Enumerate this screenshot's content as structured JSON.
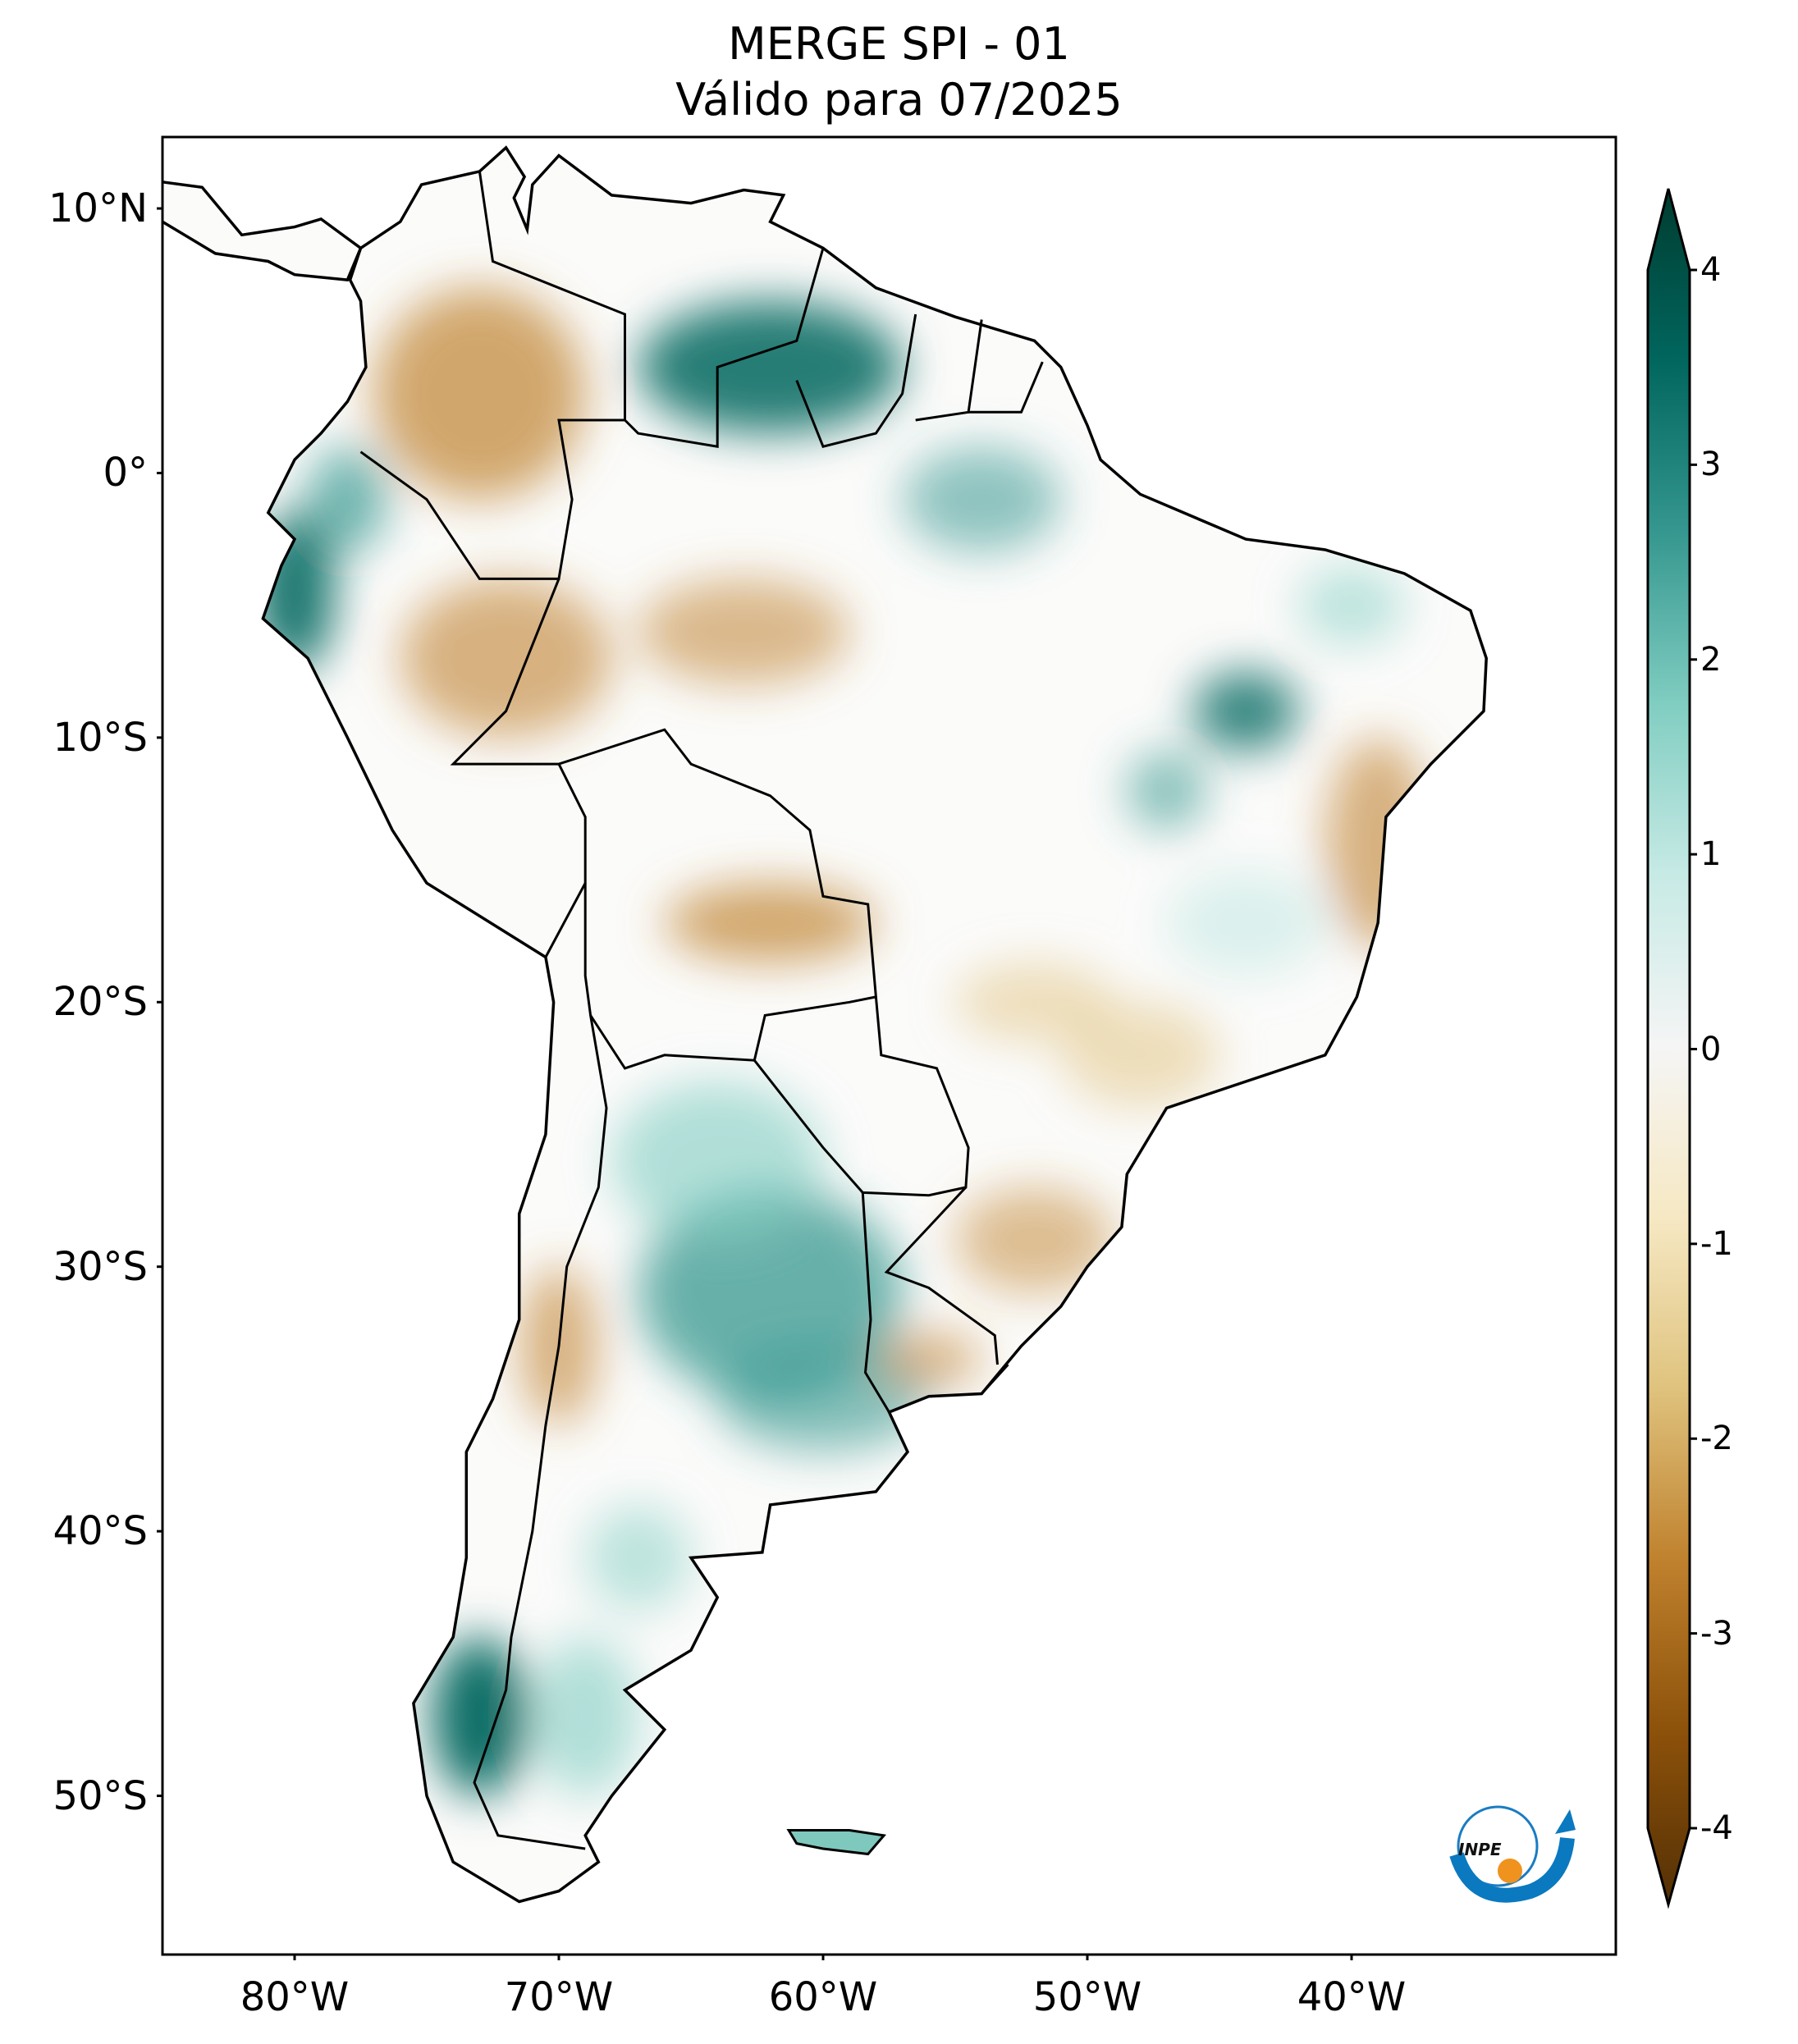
{
  "title": {
    "line1": "MERGE   SPI - 01",
    "line2": "Válido para 07/2025"
  },
  "map": {
    "region": "South America",
    "variable": "SPI - 01",
    "lon_range": [
      -85,
      -30
    ],
    "lat_range": [
      -56,
      12.7
    ],
    "lat_ticks": [
      {
        "value": 10,
        "label": "10°N"
      },
      {
        "value": 0,
        "label": "0°"
      },
      {
        "value": -10,
        "label": "10°S"
      },
      {
        "value": -20,
        "label": "20°S"
      },
      {
        "value": -30,
        "label": "30°S"
      },
      {
        "value": -40,
        "label": "40°S"
      },
      {
        "value": -50,
        "label": "50°S"
      }
    ],
    "lon_ticks": [
      {
        "value": -80,
        "label": "80°W"
      },
      {
        "value": -70,
        "label": "70°W"
      },
      {
        "value": -60,
        "label": "60°W"
      },
      {
        "value": -50,
        "label": "50°W"
      },
      {
        "value": -40,
        "label": "40°W"
      }
    ]
  },
  "colorbar": {
    "range": [
      -4,
      4
    ],
    "extend": "both",
    "ticks": [
      {
        "value": 4,
        "label": "4"
      },
      {
        "value": 3,
        "label": "3"
      },
      {
        "value": 2,
        "label": "2"
      },
      {
        "value": 1,
        "label": "1"
      },
      {
        "value": 0,
        "label": "0"
      },
      {
        "value": -1,
        "label": "-1"
      },
      {
        "value": -2,
        "label": "-2"
      },
      {
        "value": -3,
        "label": "-3"
      },
      {
        "value": -4,
        "label": "-4"
      }
    ],
    "colors": [
      "#543005",
      "#8c510a",
      "#bf812d",
      "#dfc27d",
      "#f6e8c3",
      "#f5f5f5",
      "#c7eae5",
      "#80cdc1",
      "#35978f",
      "#01665e",
      "#003c30"
    ]
  },
  "logo": {
    "text": "INPE"
  }
}
